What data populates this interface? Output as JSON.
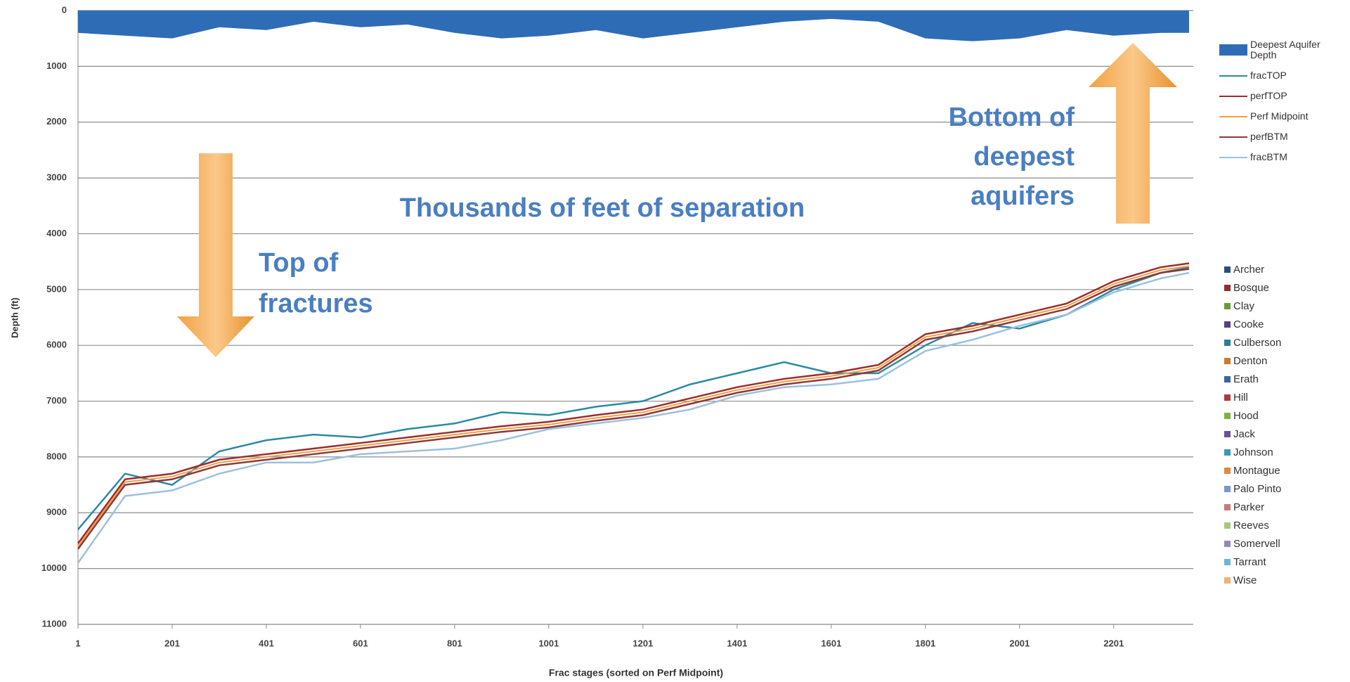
{
  "chart_data": {
    "type": "line",
    "x_label": "Frac stages (sorted on Perf Midpoint)",
    "y_label": "Depth (ft)",
    "x": [
      1,
      101,
      201,
      301,
      401,
      501,
      601,
      701,
      801,
      901,
      1001,
      1101,
      1201,
      1301,
      1401,
      1501,
      1601,
      1701,
      1801,
      1901,
      2001,
      2101,
      2201,
      2301,
      2361
    ],
    "series": [
      {
        "name": "Deepest Aquifer Depth",
        "color": "#2e6db5",
        "kind": "area",
        "values": [
          400,
          450,
          500,
          300,
          350,
          200,
          300,
          250,
          400,
          500,
          450,
          350,
          500,
          400,
          300,
          200,
          150,
          200,
          500,
          550,
          500,
          350,
          450,
          400,
          400
        ]
      },
      {
        "name": "fracTOP",
        "color": "#2b8aa3",
        "values": [
          9300,
          8300,
          8500,
          7900,
          7700,
          7600,
          7650,
          7500,
          7400,
          7200,
          7250,
          7100,
          7000,
          6700,
          6500,
          6300,
          6500,
          6500,
          6000,
          5600,
          5700,
          5450,
          5000,
          4700,
          4600
        ]
      },
      {
        "name": "perfTOP",
        "color": "#9b2d2d",
        "values": [
          9550,
          8400,
          8300,
          8050,
          7950,
          7850,
          7750,
          7650,
          7550,
          7450,
          7370,
          7250,
          7150,
          6950,
          6750,
          6600,
          6500,
          6350,
          5800,
          5650,
          5450,
          5250,
          4850,
          4600,
          4530
        ]
      },
      {
        "name": "Perf Midpoint",
        "color": "#f0a040",
        "values": [
          9600,
          8450,
          8350,
          8100,
          8000,
          7900,
          7800,
          7700,
          7600,
          7500,
          7420,
          7300,
          7200,
          7000,
          6800,
          6650,
          6550,
          6400,
          5850,
          5700,
          5500,
          5300,
          4900,
          4650,
          4580
        ]
      },
      {
        "name": "perfBTM",
        "color": "#8b3a3a",
        "values": [
          9650,
          8500,
          8400,
          8150,
          8050,
          7950,
          7850,
          7750,
          7650,
          7550,
          7470,
          7350,
          7250,
          7050,
          6850,
          6700,
          6600,
          6450,
          5900,
          5750,
          5550,
          5350,
          4950,
          4700,
          4630
        ]
      },
      {
        "name": "fracBTM",
        "color": "#9cc0dd",
        "values": [
          9900,
          8700,
          8600,
          8300,
          8100,
          8100,
          7950,
          7900,
          7850,
          7700,
          7500,
          7400,
          7300,
          7150,
          6900,
          6750,
          6700,
          6600,
          6100,
          5900,
          5650,
          5450,
          5050,
          4800,
          4700
        ]
      }
    ],
    "county_legend": [
      {
        "name": "Archer",
        "color": "#2b4f7e"
      },
      {
        "name": "Bosque",
        "color": "#8e2e2e"
      },
      {
        "name": "Clay",
        "color": "#6a9a3a"
      },
      {
        "name": "Cooke",
        "color": "#5b3f80"
      },
      {
        "name": "Culberson",
        "color": "#2b7e93"
      },
      {
        "name": "Denton",
        "color": "#d0782a"
      },
      {
        "name": "Erath",
        "color": "#3a64a0"
      },
      {
        "name": "Hill",
        "color": "#a83a3a"
      },
      {
        "name": "Hood",
        "color": "#80b04a"
      },
      {
        "name": "Jack",
        "color": "#6e4e98"
      },
      {
        "name": "Johnson",
        "color": "#3a9ab3"
      },
      {
        "name": "Montague",
        "color": "#e08a3a"
      },
      {
        "name": "Palo Pinto",
        "color": "#7a96c8"
      },
      {
        "name": "Parker",
        "color": "#c87878"
      },
      {
        "name": "Reeves",
        "color": "#a8c878"
      },
      {
        "name": "Somervell",
        "color": "#9a86b8"
      },
      {
        "name": "Tarrant",
        "color": "#6ab8cc"
      },
      {
        "name": "Wise",
        "color": "#f0b07a"
      }
    ],
    "annotations": [
      [
        "Thousands of feet of separation"
      ],
      [
        "Top of",
        "fractures"
      ],
      [
        "Bottom of",
        "deepest",
        "aquifers"
      ]
    ],
    "xlim": [
      1,
      2370
    ],
    "ylim": [
      0,
      11000
    ],
    "xticks": [
      1,
      201,
      401,
      601,
      801,
      1001,
      1201,
      1401,
      1601,
      1801,
      2001,
      2201
    ],
    "yticks": [
      0,
      1000,
      2000,
      3000,
      4000,
      5000,
      6000,
      7000,
      8000,
      9000,
      10000,
      11000
    ],
    "y_inverted": true,
    "grid": true
  }
}
